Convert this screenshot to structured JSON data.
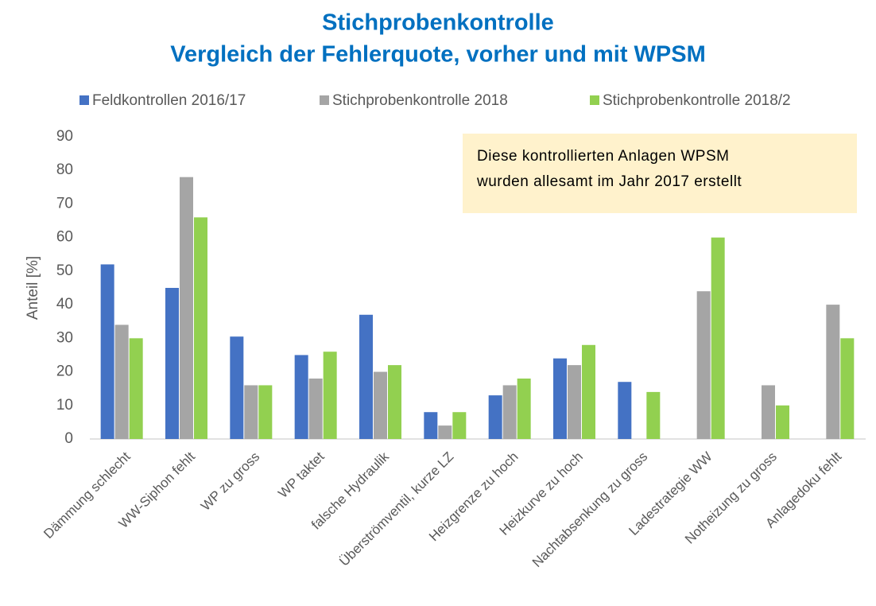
{
  "chart_data": {
    "type": "bar",
    "title": "Stichprobenkontrolle",
    "subtitle": "Vergleich der Fehlerquote, vorher und mit WPSM",
    "y_label": "Anteil [%]",
    "annotation": [
      "Diese kontrollierten Anlagen WPSM",
      "wurden allesamt im Jahr 2017 erstellt"
    ],
    "categories": [
      "Dämmung schlecht",
      "WW-Siphon fehlt",
      "WP zu gross",
      "WP taktet",
      "falsche Hydraulik",
      "Überströmventil, kurze LZ",
      "Heizgrenze zu hoch",
      "Heizkurve zu hoch",
      "Nachtabsenkung zu gross",
      "Ladestrategie WW",
      "Notheizung zu gross",
      "Anlagedoku fehlt"
    ],
    "series": [
      {
        "name": "Feldkontrollen 2016/17",
        "color": "#4472c4",
        "values": [
          52,
          45,
          30.5,
          25,
          37,
          8,
          13,
          24,
          17,
          null,
          null,
          null
        ]
      },
      {
        "name": "Stichprobenkontrolle 2018",
        "color": "#a5a5a5",
        "values": [
          34,
          78,
          16,
          18,
          20,
          4,
          16,
          22,
          null,
          44,
          16,
          40
        ]
      },
      {
        "name": "Stichprobenkontrolle 2018/2",
        "color": "#92d050",
        "values": [
          30,
          66,
          16,
          26,
          22,
          8,
          18,
          28,
          14,
          60,
          10,
          30
        ]
      }
    ],
    "ylim": [
      0,
      90
    ],
    "yticks": [
      0,
      10,
      20,
      30,
      40,
      50,
      60,
      70,
      80,
      90
    ],
    "grid": false,
    "legend": "top"
  }
}
